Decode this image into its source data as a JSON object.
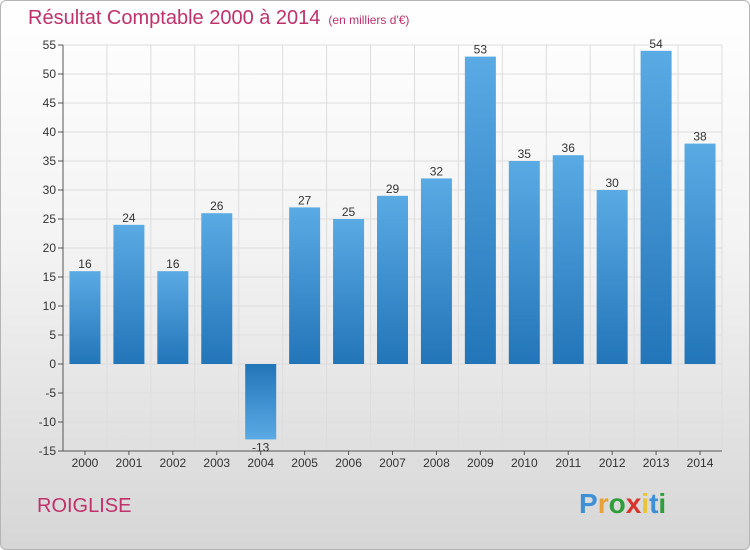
{
  "title": "Résultat Comptable 2000 à 2014",
  "subtitle": "(en milliers d'€)",
  "town": "ROIGLISE",
  "logo": {
    "letters": [
      {
        "ch": "P",
        "color": "#3d8fd6"
      },
      {
        "ch": "r",
        "color": "#e9a23b"
      },
      {
        "ch": "o",
        "color": "#2f9d3a"
      },
      {
        "ch": "x",
        "color": "#d9342b"
      },
      {
        "ch": "i",
        "color": "#e9c33b"
      },
      {
        "ch": "t",
        "color": "#3d8fd6"
      },
      {
        "ch": "i",
        "color": "#2f9d3a"
      }
    ]
  },
  "colors": {
    "bar_light": "#5aaae4",
    "bar_dark": "#2275b8",
    "grid": "#dddddd"
  },
  "chart_data": {
    "type": "bar",
    "title": "Résultat Comptable 2000 à 2014",
    "subtitle": "(en milliers d'€)",
    "categories": [
      "2000",
      "2001",
      "2002",
      "2003",
      "2004",
      "2005",
      "2006",
      "2007",
      "2008",
      "2009",
      "2010",
      "2011",
      "2012",
      "2013",
      "2014"
    ],
    "values": [
      16,
      24,
      16,
      26,
      -13,
      27,
      25,
      29,
      32,
      53,
      35,
      36,
      30,
      54,
      38
    ],
    "data_labels": [
      "16",
      "24",
      "16",
      "26",
      "-13",
      "27",
      "25",
      "29",
      "32",
      "53",
      "35",
      "36",
      "30",
      "54",
      "38"
    ],
    "ylim": [
      -15,
      55
    ],
    "yticks": [
      -15,
      -10,
      -5,
      0,
      5,
      10,
      15,
      20,
      25,
      30,
      35,
      40,
      45,
      50,
      55
    ],
    "ytick_labels": [
      "-15",
      "-10",
      "-5",
      "0",
      "5",
      "10",
      "15",
      "20",
      "25",
      "30",
      "35",
      "40",
      "45",
      "50",
      "55"
    ],
    "grid": true,
    "xlabel": "",
    "ylabel": ""
  }
}
